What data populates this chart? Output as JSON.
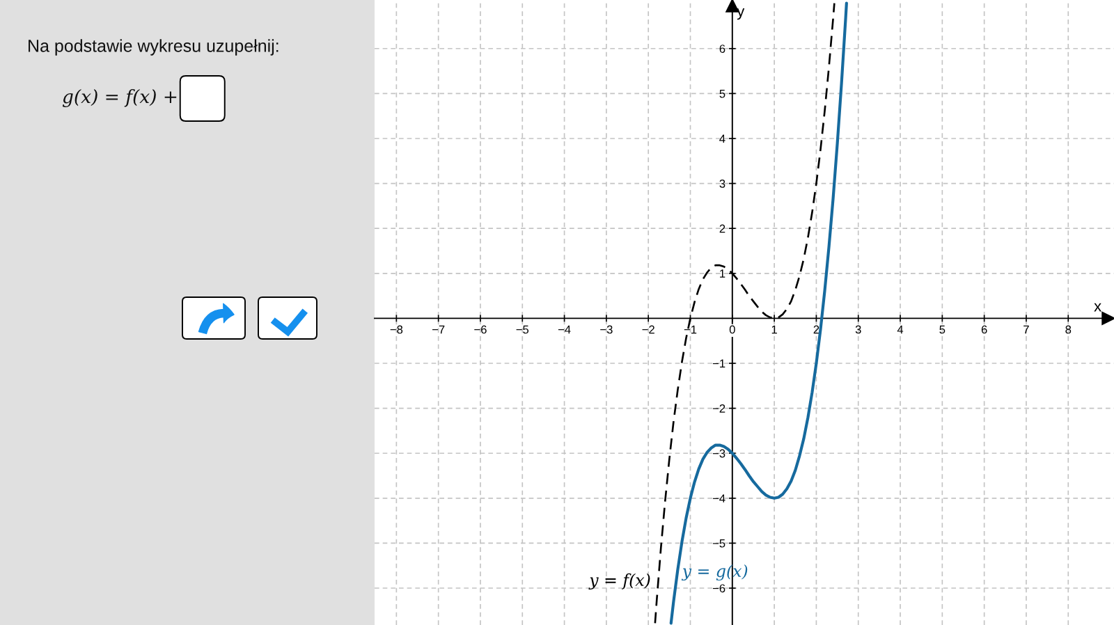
{
  "chart_data": {
    "type": "line",
    "title": "Na podstawie wykresu uzupełnij:",
    "annotations": [
      "g(x) = f(x) +"
    ],
    "xlabel": "x",
    "ylabel": "y",
    "xlim": [
      -8.52,
      9.09
    ],
    "ylim": [
      -6.82,
      7.08
    ],
    "xticks": [
      {
        "value": -8,
        "label": "−8"
      },
      {
        "value": -7,
        "label": "−7"
      },
      {
        "value": -6,
        "label": "−6"
      },
      {
        "value": -5,
        "label": "−5"
      },
      {
        "value": -4,
        "label": "−4"
      },
      {
        "value": -3,
        "label": "−3"
      },
      {
        "value": -2,
        "label": "−2"
      },
      {
        "value": -1,
        "label": "−1"
      },
      0,
      1,
      2,
      3,
      4,
      5,
      6,
      7,
      8
    ],
    "yticks": [
      {
        "value": -6,
        "label": "−6"
      },
      {
        "value": -5,
        "label": "−5"
      },
      {
        "value": -4,
        "label": "−4"
      },
      {
        "value": -3,
        "label": "−3"
      },
      {
        "value": -2,
        "label": "−2"
      },
      {
        "value": -1,
        "label": "−1"
      },
      1,
      2,
      3,
      4,
      5,
      6
    ],
    "grid": true,
    "series": [
      {
        "name": "y = f(x)",
        "color": "#000000",
        "line_style": "dashed",
        "x": [
          -1.84,
          -1.8,
          -1.7,
          -1.6,
          -1.5,
          -1.4,
          -1.3,
          -1.2,
          -1.1,
          -1.0,
          -0.9,
          -0.8,
          -0.7,
          -0.6,
          -0.5,
          -0.4,
          -0.3,
          -0.2,
          -0.1,
          0,
          0.1,
          0.2,
          0.3,
          0.4,
          0.5,
          0.6,
          0.7,
          0.8,
          0.9,
          1.0,
          1.1,
          1.2,
          1.3,
          1.4,
          1.5,
          1.6,
          1.7,
          1.8,
          1.9,
          2.0,
          2.1,
          2.2,
          2.3,
          2.4,
          2.43
        ],
        "values": [
          -6.78,
          -6.27,
          -5.1,
          -4.06,
          -3.13,
          -2.3,
          -1.59,
          -0.97,
          -0.44,
          0,
          0.36,
          0.65,
          0.87,
          1.02,
          1.13,
          1.18,
          1.18,
          1.15,
          1.09,
          1,
          0.89,
          0.77,
          0.64,
          0.5,
          0.38,
          0.26,
          0.15,
          0.07,
          0.02,
          0,
          0.02,
          0.09,
          0.21,
          0.38,
          0.63,
          0.94,
          1.32,
          1.79,
          2.35,
          3,
          3.75,
          4.61,
          5.58,
          6.66,
          7.01
        ]
      },
      {
        "name": "y = g(x)",
        "color": "#166a9e",
        "line_style": "solid",
        "x": [
          -1.46,
          -1.4,
          -1.3,
          -1.2,
          -1.1,
          -1.0,
          -0.9,
          -0.8,
          -0.7,
          -0.6,
          -0.5,
          -0.4,
          -0.3,
          -0.2,
          -0.1,
          0,
          0.1,
          0.2,
          0.3,
          0.4,
          0.5,
          0.6,
          0.7,
          0.8,
          0.9,
          1.0,
          1.1,
          1.2,
          1.3,
          1.4,
          1.5,
          1.6,
          1.7,
          1.8,
          1.9,
          2.0,
          2.1,
          2.2,
          2.3,
          2.4,
          2.5,
          2.6,
          2.7,
          2.72
        ],
        "values": [
          -6.78,
          -6.3,
          -5.59,
          -4.97,
          -4.44,
          -4,
          -3.64,
          -3.35,
          -3.13,
          -2.98,
          -2.88,
          -2.82,
          -2.82,
          -2.85,
          -2.91,
          -3,
          -3.11,
          -3.23,
          -3.36,
          -3.5,
          -3.63,
          -3.74,
          -3.85,
          -3.93,
          -3.98,
          -4,
          -3.98,
          -3.91,
          -3.79,
          -3.62,
          -3.38,
          -3.06,
          -2.68,
          -2.21,
          -1.65,
          -1,
          -0.25,
          0.61,
          1.58,
          2.66,
          3.88,
          5.22,
          6.69,
          7.01
        ]
      }
    ]
  }
}
